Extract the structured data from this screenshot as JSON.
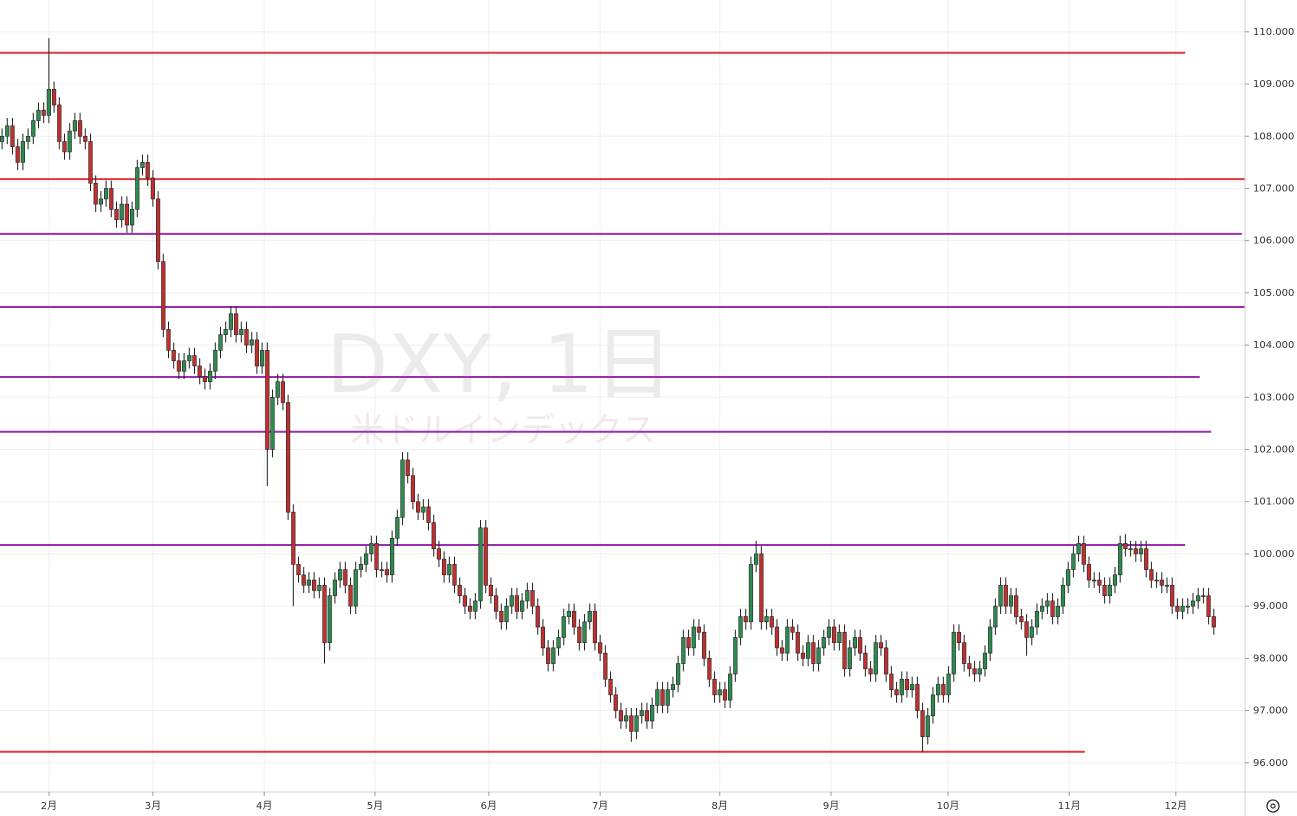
{
  "chart_data": {
    "type": "candlestick",
    "watermark_title": "DXY, 1日",
    "watermark_subtitle": "米ドルインデックス",
    "up_color": "#2e8b4f",
    "down_color": "#c0302f",
    "grid": true,
    "xlim": [
      -0.4,
      239
    ],
    "ylim": [
      95.44,
      110.61
    ],
    "xticks": [
      {
        "value": 9.02,
        "label": "2月"
      },
      {
        "value": 29.0,
        "label": "3月"
      },
      {
        "value": 50.4,
        "label": "4月"
      },
      {
        "value": 71.7,
        "label": "5月"
      },
      {
        "value": 93.6,
        "label": "6月"
      },
      {
        "value": 115.0,
        "label": "7月"
      },
      {
        "value": 138.0,
        "label": "8月"
      },
      {
        "value": 159.4,
        "label": "9月"
      },
      {
        "value": 181.9,
        "label": "10月"
      },
      {
        "value": 205.2,
        "label": "11月"
      },
      {
        "value": 225.7,
        "label": "12月"
      }
    ],
    "yticks": [
      {
        "value": 96,
        "label": "96.000"
      },
      {
        "value": 97,
        "label": "97.000"
      },
      {
        "value": 98,
        "label": "98.000"
      },
      {
        "value": 99,
        "label": "99.000"
      },
      {
        "value": 100,
        "label": "100.000"
      },
      {
        "value": 101,
        "label": "101.000"
      },
      {
        "value": 102,
        "label": "102.000"
      },
      {
        "value": 103,
        "label": "103.000"
      },
      {
        "value": 104,
        "label": "104.000"
      },
      {
        "value": 105,
        "label": "105.000"
      },
      {
        "value": 106,
        "label": "106.000"
      },
      {
        "value": 107,
        "label": "107.000"
      },
      {
        "value": 108,
        "label": "108.000"
      },
      {
        "value": 109,
        "label": "109.000"
      },
      {
        "value": 110,
        "label": "110.000"
      }
    ],
    "levels": [
      {
        "value": 109.6,
        "color": "#e0393e",
        "end": 227.5
      },
      {
        "value": 107.18,
        "color": "#e0393e",
        "end": 239
      },
      {
        "value": 106.13,
        "color": "#9c2fb0",
        "end": 238.4
      },
      {
        "value": 104.73,
        "color": "#9c2fb0",
        "end": 239
      },
      {
        "value": 103.39,
        "color": "#9c2fb0",
        "end": 230.3
      },
      {
        "value": 102.34,
        "color": "#9c2fb0",
        "end": 232.5
      },
      {
        "value": 100.17,
        "color": "#9c2fb0",
        "end": 227.5
      },
      {
        "value": 96.21,
        "color": "#e0393e",
        "end": 208.2
      }
    ],
    "open": [
      107.9,
      108.0,
      108.2,
      107.8,
      107.5,
      107.9,
      108.0,
      108.3,
      108.5,
      108.4,
      108.9,
      108.6,
      107.9,
      107.7,
      108.1,
      108.3,
      108.0,
      107.9,
      107.1,
      106.7,
      106.8,
      107.0,
      106.6,
      106.4,
      106.7,
      106.3,
      106.6,
      107.4,
      107.5,
      107.2,
      106.8,
      105.6,
      104.3,
      103.9,
      103.7,
      103.5,
      103.7,
      103.8,
      103.6,
      103.4,
      103.3,
      103.5,
      103.9,
      104.2,
      104.3,
      104.6,
      104.2,
      104.3,
      104.0,
      104.1,
      103.6,
      103.9,
      102.0,
      103.0,
      103.3,
      102.9,
      100.8,
      99.8,
      99.6,
      99.4,
      99.5,
      99.3,
      99.4,
      98.3,
      99.2,
      99.5,
      99.7,
      99.4,
      99.0,
      99.7,
      99.8,
      100.0,
      100.2,
      99.7,
      99.7,
      99.6,
      100.3,
      100.7,
      101.8,
      101.5,
      101.0,
      100.8,
      100.9,
      100.6,
      100.1,
      99.9,
      99.6,
      99.8,
      99.4,
      99.2,
      99.0,
      98.9,
      99.1,
      100.5,
      99.4,
      99.2,
      98.9,
      98.7,
      99.0,
      99.2,
      98.9,
      99.1,
      99.3,
      99.0,
      98.6,
      98.2,
      97.9,
      98.2,
      98.4,
      98.8,
      98.9,
      98.6,
      98.3,
      98.7,
      98.9,
      98.3,
      98.1,
      97.6,
      97.3,
      97.0,
      96.8,
      96.9,
      96.6,
      96.9,
      97.0,
      96.8,
      97.1,
      97.4,
      97.1,
      97.4,
      97.5,
      97.9,
      98.4,
      98.2,
      98.6,
      98.5,
      98.0,
      97.6,
      97.3,
      97.4,
      97.2,
      97.7,
      98.4,
      98.8,
      98.7,
      99.8,
      100.0,
      98.7,
      98.8,
      98.6,
      98.2,
      98.1,
      98.6,
      98.5,
      98.1,
      98.0,
      98.3,
      97.9,
      98.2,
      98.4,
      98.6,
      98.3,
      98.5,
      97.8,
      98.2,
      98.4,
      98.1,
      97.8,
      97.7,
      98.3,
      98.2,
      97.7,
      97.4,
      97.3,
      97.6,
      97.4,
      97.5,
      97.0,
      96.5,
      96.9,
      97.3,
      97.5,
      97.3,
      97.7,
      98.5,
      98.3,
      97.9,
      97.8,
      97.7,
      97.8,
      98.1,
      98.6,
      99.0,
      99.4,
      99.0,
      99.2,
      98.8,
      98.7,
      98.4,
      98.6,
      98.9,
      99.0,
      99.1,
      98.8,
      99.0,
      99.4,
      99.7,
      100.0,
      100.2,
      99.8,
      99.5,
      99.5,
      99.4,
      99.2,
      99.4,
      99.6,
      100.2,
      100.1,
      100.1,
      100.0,
      100.1,
      99.7,
      99.5,
      99.5,
      99.4,
      99.4,
      99.0,
      98.9,
      99.0,
      99.0,
      99.1,
      99.2,
      99.2,
      98.8
    ],
    "high": [
      108.15,
      108.35,
      108.35,
      107.95,
      108.05,
      108.15,
      108.45,
      108.65,
      108.65,
      109.88,
      109.05,
      108.75,
      108.05,
      108.25,
      108.45,
      108.45,
      108.15,
      108.05,
      107.25,
      106.95,
      107.15,
      107.15,
      106.75,
      106.85,
      106.85,
      106.75,
      107.55,
      107.65,
      107.65,
      107.35,
      106.95,
      105.75,
      104.45,
      104.05,
      103.85,
      103.85,
      103.95,
      103.95,
      103.75,
      103.55,
      103.65,
      104.05,
      104.35,
      104.45,
      104.75,
      104.75,
      104.45,
      104.45,
      104.25,
      104.25,
      104.05,
      104.05,
      103.15,
      103.45,
      103.45,
      103.05,
      100.95,
      99.95,
      99.75,
      99.65,
      99.65,
      99.55,
      99.55,
      99.35,
      99.65,
      99.85,
      99.85,
      99.55,
      99.85,
      99.95,
      100.15,
      100.35,
      100.35,
      99.85,
      99.85,
      100.45,
      100.85,
      101.95,
      101.95,
      101.65,
      101.15,
      101.05,
      101.05,
      100.75,
      100.25,
      100.05,
      99.95,
      99.95,
      99.55,
      99.35,
      99.15,
      99.25,
      100.65,
      100.65,
      99.55,
      99.35,
      99.05,
      99.15,
      99.35,
      99.35,
      99.25,
      99.45,
      99.45,
      99.15,
      98.75,
      98.35,
      98.35,
      98.55,
      98.95,
      99.05,
      99.05,
      98.75,
      98.85,
      99.05,
      99.05,
      98.45,
      98.25,
      97.75,
      97.45,
      97.15,
      97.05,
      97.05,
      97.05,
      97.15,
      97.15,
      97.25,
      97.55,
      97.55,
      97.55,
      97.65,
      98.05,
      98.55,
      98.55,
      98.75,
      98.75,
      98.65,
      98.15,
      97.75,
      97.55,
      97.55,
      97.85,
      98.55,
      98.95,
      98.95,
      99.95,
      100.25,
      100.15,
      98.95,
      98.95,
      98.75,
      98.35,
      98.75,
      98.75,
      98.65,
      98.25,
      98.45,
      98.45,
      98.35,
      98.55,
      98.75,
      98.75,
      98.65,
      98.65,
      98.35,
      98.55,
      98.55,
      98.25,
      97.95,
      98.45,
      98.45,
      98.35,
      97.85,
      97.55,
      97.75,
      97.75,
      97.65,
      97.65,
      97.15,
      97.05,
      97.45,
      97.65,
      97.65,
      97.85,
      98.65,
      98.65,
      98.45,
      98.05,
      97.95,
      97.95,
      98.25,
      98.75,
      99.15,
      99.55,
      99.55,
      99.35,
      99.35,
      98.95,
      98.85,
      98.75,
      99.05,
      99.15,
      99.25,
      99.25,
      99.15,
      99.55,
      99.85,
      100.15,
      100.35,
      100.35,
      99.95,
      99.65,
      99.65,
      99.55,
      99.55,
      99.75,
      100.35,
      100.38,
      100.25,
      100.25,
      100.25,
      100.25,
      99.85,
      99.65,
      99.65,
      99.55,
      99.55,
      99.15,
      99.15,
      99.15,
      99.25,
      99.35,
      99.35,
      99.35,
      98.95
    ],
    "low": [
      107.75,
      107.85,
      107.65,
      107.35,
      107.35,
      107.75,
      107.85,
      108.15,
      108.25,
      108.25,
      108.45,
      107.75,
      107.55,
      107.55,
      107.95,
      107.85,
      107.75,
      106.95,
      106.55,
      106.55,
      106.65,
      106.45,
      106.25,
      106.25,
      106.15,
      106.15,
      106.45,
      107.25,
      107.05,
      106.65,
      105.45,
      104.15,
      103.75,
      103.55,
      103.35,
      103.35,
      103.55,
      103.45,
      103.25,
      103.15,
      103.15,
      103.35,
      103.75,
      104.05,
      104.15,
      104.05,
      104.05,
      103.85,
      103.85,
      103.45,
      103.45,
      101.3,
      101.85,
      102.85,
      102.75,
      100.65,
      99.0,
      99.45,
      99.25,
      99.25,
      99.15,
      99.15,
      97.9,
      98.15,
      99.05,
      99.35,
      99.25,
      98.85,
      98.85,
      99.55,
      99.65,
      99.85,
      99.55,
      99.55,
      99.45,
      99.45,
      100.15,
      100.55,
      101.35,
      100.85,
      100.65,
      100.65,
      100.45,
      99.95,
      99.75,
      99.45,
      99.45,
      99.25,
      99.05,
      98.85,
      98.75,
      98.75,
      98.95,
      99.25,
      99.05,
      98.75,
      98.55,
      98.55,
      98.85,
      98.75,
      98.75,
      98.95,
      98.85,
      98.45,
      98.05,
      97.75,
      97.75,
      98.05,
      98.25,
      98.65,
      98.45,
      98.15,
      98.15,
      98.55,
      98.15,
      97.95,
      97.45,
      97.15,
      96.85,
      96.65,
      96.65,
      96.4,
      96.45,
      96.75,
      96.65,
      96.65,
      96.95,
      96.95,
      96.95,
      97.25,
      97.35,
      97.75,
      98.05,
      98.05,
      98.35,
      97.85,
      97.45,
      97.15,
      97.15,
      97.05,
      97.05,
      97.55,
      98.25,
      98.55,
      98.55,
      99.65,
      98.55,
      98.55,
      98.45,
      98.05,
      97.95,
      97.95,
      98.35,
      97.95,
      97.85,
      97.85,
      97.75,
      97.75,
      98.05,
      98.25,
      98.15,
      98.15,
      97.65,
      97.65,
      98.05,
      97.95,
      97.65,
      97.55,
      97.55,
      98.05,
      97.55,
      97.25,
      97.15,
      97.15,
      97.25,
      97.25,
      96.85,
      96.2,
      96.35,
      96.75,
      97.15,
      97.15,
      97.15,
      97.55,
      98.15,
      97.75,
      97.65,
      97.55,
      97.55,
      97.65,
      97.95,
      98.45,
      98.85,
      98.85,
      98.85,
      98.65,
      98.55,
      98.05,
      98.25,
      98.45,
      98.75,
      98.85,
      98.65,
      98.65,
      98.85,
      99.25,
      99.55,
      99.85,
      99.65,
      99.35,
      99.35,
      99.25,
      99.05,
      99.05,
      99.25,
      99.45,
      99.95,
      99.95,
      99.85,
      99.85,
      99.55,
      99.35,
      99.35,
      99.25,
      99.25,
      98.85,
      98.75,
      98.75,
      98.85,
      98.85,
      98.95,
      99.05,
      98.65,
      98.45
    ],
    "close": [
      108.0,
      108.2,
      107.8,
      107.5,
      107.9,
      108.0,
      108.3,
      108.5,
      108.4,
      108.9,
      108.6,
      107.9,
      107.7,
      108.1,
      108.3,
      108.0,
      107.9,
      107.1,
      106.7,
      106.8,
      107.0,
      106.6,
      106.4,
      106.7,
      106.3,
      106.6,
      107.4,
      107.5,
      107.2,
      106.8,
      105.6,
      104.3,
      103.9,
      103.7,
      103.5,
      103.7,
      103.8,
      103.6,
      103.4,
      103.3,
      103.5,
      103.9,
      104.2,
      104.3,
      104.6,
      104.2,
      104.3,
      104.0,
      104.1,
      103.6,
      103.9,
      102.0,
      103.0,
      103.3,
      102.9,
      100.8,
      99.8,
      99.6,
      99.4,
      99.5,
      99.3,
      99.4,
      98.3,
      99.2,
      99.5,
      99.7,
      99.4,
      99.0,
      99.7,
      99.8,
      100.0,
      100.2,
      99.7,
      99.7,
      99.6,
      100.3,
      100.7,
      101.8,
      101.5,
      101.0,
      100.8,
      100.9,
      100.6,
      100.1,
      99.9,
      99.6,
      99.8,
      99.4,
      99.2,
      99.0,
      98.9,
      99.1,
      100.5,
      99.4,
      99.2,
      98.9,
      98.7,
      99.0,
      99.2,
      98.9,
      99.1,
      99.3,
      99.0,
      98.6,
      98.2,
      97.9,
      98.2,
      98.4,
      98.8,
      98.9,
      98.6,
      98.3,
      98.7,
      98.9,
      98.3,
      98.1,
      97.6,
      97.3,
      97.0,
      96.8,
      96.9,
      96.6,
      96.9,
      97.0,
      96.8,
      97.1,
      97.4,
      97.1,
      97.4,
      97.5,
      97.9,
      98.4,
      98.2,
      98.6,
      98.5,
      98.0,
      97.6,
      97.3,
      97.4,
      97.2,
      97.7,
      98.4,
      98.8,
      98.7,
      99.8,
      100.0,
      98.7,
      98.8,
      98.6,
      98.2,
      98.1,
      98.6,
      98.5,
      98.1,
      98.0,
      98.3,
      97.9,
      98.2,
      98.4,
      98.6,
      98.3,
      98.5,
      97.8,
      98.2,
      98.4,
      98.1,
      97.8,
      97.7,
      98.3,
      98.2,
      97.7,
      97.4,
      97.3,
      97.6,
      97.4,
      97.5,
      97.0,
      96.5,
      96.9,
      97.3,
      97.5,
      97.3,
      97.7,
      98.5,
      98.3,
      97.9,
      97.8,
      97.7,
      97.8,
      98.1,
      98.6,
      99.0,
      99.4,
      99.0,
      99.2,
      98.8,
      98.7,
      98.4,
      98.6,
      98.9,
      99.0,
      99.1,
      98.8,
      99.0,
      99.4,
      99.7,
      100.0,
      100.2,
      99.8,
      99.5,
      99.5,
      99.4,
      99.2,
      99.4,
      99.6,
      100.2,
      100.1,
      100.1,
      100.0,
      100.1,
      99.7,
      99.5,
      99.5,
      99.4,
      99.4,
      99.0,
      98.9,
      99.0,
      99.0,
      99.1,
      99.2,
      99.2,
      98.8,
      98.6
    ]
  }
}
